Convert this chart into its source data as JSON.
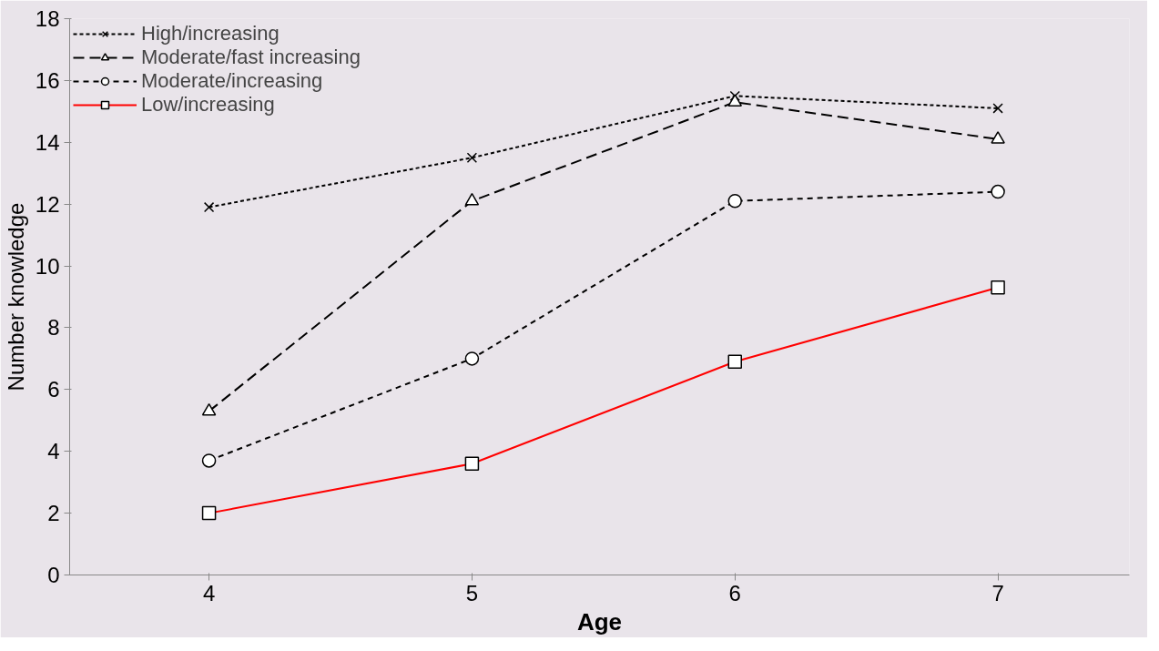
{
  "chart_data": {
    "type": "line",
    "xlabel": "Age",
    "ylabel": "Number knowledge",
    "categories": [
      "4",
      "5",
      "6",
      "7"
    ],
    "series": [
      {
        "name": "High/increasing",
        "color": "#000000",
        "values": [
          11.9,
          13.5,
          15.5,
          15.1
        ],
        "marker": "cross",
        "line_style": "dotted"
      },
      {
        "name": "Moderate/fast increasing",
        "color": "#000000",
        "values": [
          5.3,
          12.1,
          15.3,
          14.1
        ],
        "marker": "triangle",
        "line_style": "dashed"
      },
      {
        "name": "Moderate/increasing",
        "color": "#000000",
        "values": [
          3.7,
          7.0,
          12.1,
          12.4
        ],
        "marker": "circle",
        "line_style": "dashed"
      },
      {
        "name": "Low/increasing",
        "color": "#ff0000",
        "values": [
          2.0,
          3.6,
          6.9,
          9.3
        ],
        "marker": "square",
        "line_style": "solid"
      }
    ],
    "ylim": [
      0,
      18
    ],
    "yticks": [
      0,
      2,
      4,
      6,
      8,
      10,
      12,
      14,
      16,
      18
    ],
    "legend": "top left"
  }
}
